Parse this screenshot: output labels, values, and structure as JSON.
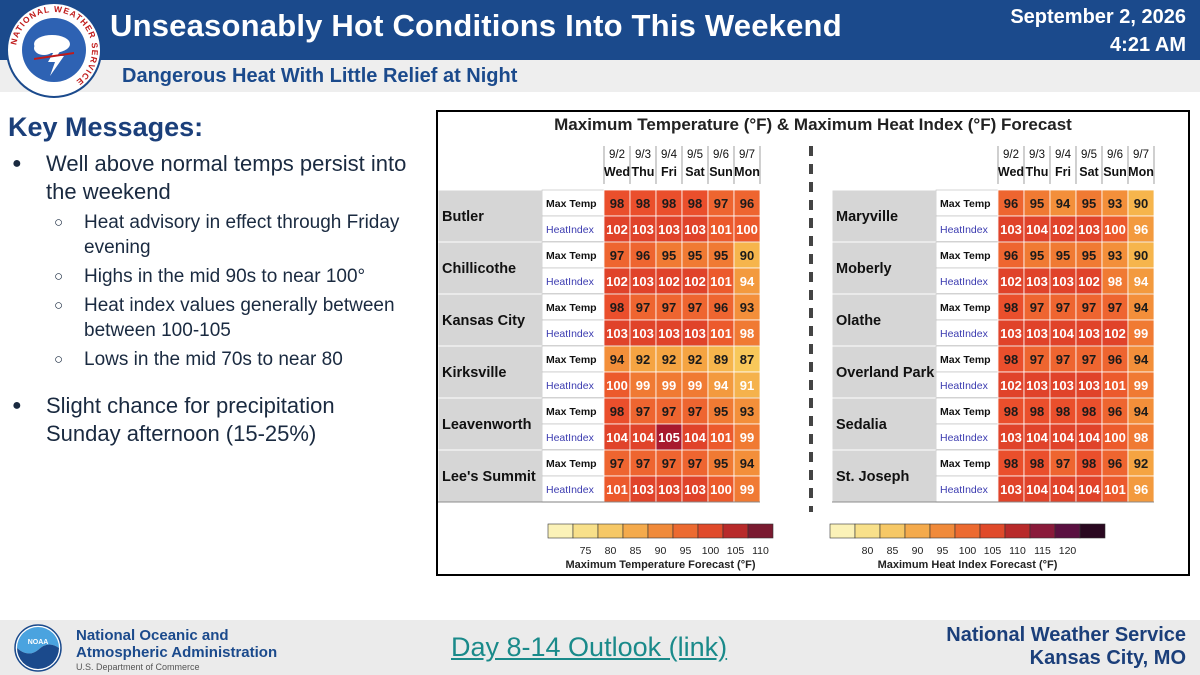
{
  "header": {
    "title": "Unseasonably Hot Conditions Into This Weekend",
    "date": "September 2, 2026",
    "time": "4:21 AM",
    "logo_ring_text": "NATIONAL WEATHER SERVICE"
  },
  "subheader": {
    "title": "Dangerous Heat With Little Relief at Night"
  },
  "key_messages": {
    "title": "Key Messages:",
    "bullet1": "Well above normal temps persist into the weekend",
    "sub1": "Heat advisory in effect through Friday evening",
    "sub2": "Highs in the mid 90s to near 100°",
    "sub3": "Heat index values generally between between 100-105",
    "sub4": "Lows in the mid 70s to near 80",
    "bullet2": "Slight chance for precipitation Sunday afternoon (15-25%)"
  },
  "chart": {
    "title": "Maximum Temperature (°F) & Maximum Heat Index (°F) Forecast",
    "dates": [
      "9/2",
      "9/3",
      "9/4",
      "9/5",
      "9/6",
      "9/7"
    ],
    "days": [
      "Wed",
      "Thu",
      "Fri",
      "Sat",
      "Sun",
      "Mon"
    ],
    "row_labels": [
      "Max Temp",
      "HeatIndex"
    ],
    "left_cities": [
      {
        "name": "Butler",
        "max": [
          98,
          98,
          98,
          98,
          97,
          96
        ],
        "hi": [
          102,
          103,
          103,
          103,
          101,
          100
        ]
      },
      {
        "name": "Chillicothe",
        "max": [
          97,
          96,
          95,
          95,
          95,
          90
        ],
        "hi": [
          102,
          103,
          102,
          102,
          101,
          94
        ]
      },
      {
        "name": "Kansas City",
        "max": [
          98,
          97,
          97,
          97,
          96,
          93
        ],
        "hi": [
          103,
          103,
          103,
          103,
          101,
          98
        ]
      },
      {
        "name": "Kirksville",
        "max": [
          94,
          92,
          92,
          92,
          89,
          87
        ],
        "hi": [
          100,
          99,
          99,
          99,
          94,
          91
        ]
      },
      {
        "name": "Leavenworth",
        "max": [
          98,
          97,
          97,
          97,
          95,
          93
        ],
        "hi": [
          104,
          104,
          105,
          104,
          101,
          99
        ]
      },
      {
        "name": "Lee's Summit",
        "max": [
          97,
          97,
          97,
          97,
          95,
          94
        ],
        "hi": [
          101,
          103,
          103,
          103,
          100,
          99
        ]
      }
    ],
    "right_cities": [
      {
        "name": "Maryville",
        "max": [
          96,
          95,
          94,
          95,
          93,
          90
        ],
        "hi": [
          103,
          104,
          102,
          103,
          100,
          96
        ]
      },
      {
        "name": "Moberly",
        "max": [
          96,
          95,
          95,
          95,
          93,
          90
        ],
        "hi": [
          102,
          103,
          103,
          102,
          98,
          94
        ]
      },
      {
        "name": "Olathe",
        "max": [
          98,
          97,
          97,
          97,
          97,
          94
        ],
        "hi": [
          103,
          103,
          104,
          103,
          102,
          99
        ]
      },
      {
        "name": "Overland Park",
        "max": [
          98,
          97,
          97,
          97,
          96,
          94
        ],
        "hi": [
          102,
          103,
          103,
          103,
          101,
          99
        ]
      },
      {
        "name": "Sedalia",
        "max": [
          98,
          98,
          98,
          98,
          96,
          94
        ],
        "hi": [
          103,
          104,
          104,
          104,
          100,
          98
        ]
      },
      {
        "name": "St. Joseph",
        "max": [
          98,
          98,
          97,
          98,
          96,
          92
        ],
        "hi": [
          103,
          104,
          104,
          104,
          101,
          96
        ]
      }
    ],
    "legend_left": {
      "ticks": [
        "75",
        "80",
        "85",
        "90",
        "95",
        "100",
        "105",
        "110"
      ],
      "label": "Maximum Temperature Forecast (°F)"
    },
    "legend_right": {
      "ticks": [
        "80",
        "85",
        "90",
        "95",
        "100",
        "105",
        "110",
        "115",
        "120"
      ],
      "label": "Maximum Heat Index Forecast (°F)"
    }
  },
  "footer": {
    "noaa_name_line1": "National Oceanic and",
    "noaa_name_line2": "Atmospheric Administration",
    "noaa_dept": "U.S. Department of Commerce",
    "noaa_logo_text": "NOAA",
    "outlook_link": "Day 8-14 Outlook (link)",
    "nws_line1": "National Weather Service",
    "nws_line2": "Kansas City, MO"
  },
  "colors": {
    "header_blue": "#1b4a8c",
    "link_teal": "#1a8a8a"
  }
}
